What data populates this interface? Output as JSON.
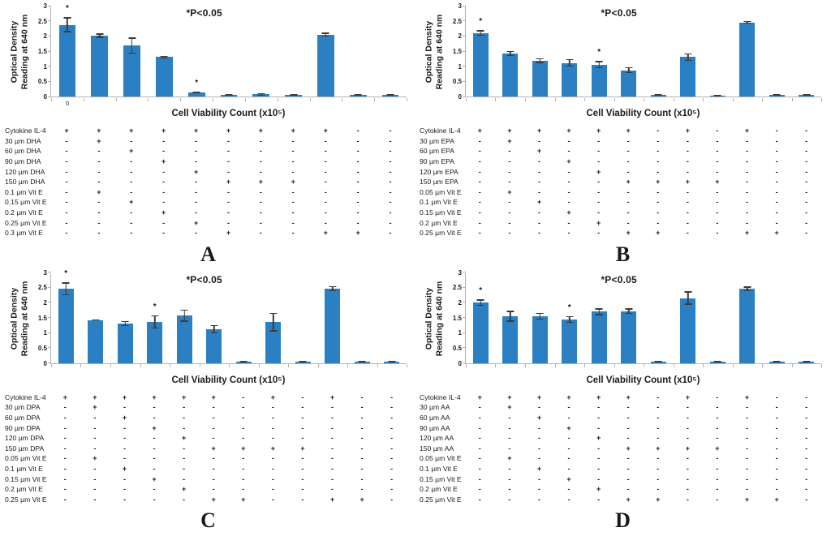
{
  "colors": {
    "bar_blue": "#2a80c2",
    "error_bar": "#3b3b3b",
    "axis_gray": "#b3b3b3"
  },
  "chart_data": [
    {
      "panel": "A",
      "type": "bar",
      "title": "",
      "ylabel": "Optical Density Reading at 640 nm",
      "ylabel_lines": [
        "Optical Density",
        "Reading at 640 nm"
      ],
      "xlabel": "Cell Viability Count (x10⁵)",
      "annotation": "*P<0.05",
      "ylim": [
        0,
        3
      ],
      "yticks": [
        "0",
        "0.5",
        "1",
        "1.5",
        "2",
        "2.5",
        "3"
      ],
      "grid": "off",
      "legend": "none",
      "x_first_tick_label": "0",
      "values": [
        2.37,
        2.01,
        1.68,
        1.3,
        0.13,
        0.05,
        0.07,
        0.05,
        2.04,
        0.06,
        0.05
      ],
      "errors": [
        0.25,
        0.07,
        0.27,
        0.04,
        0.03,
        0.01,
        0.04,
        0.02,
        0.07,
        0.02,
        0.01
      ],
      "significant_bars": [
        0,
        4
      ],
      "treatment_matrix": {
        "plus": "+",
        "minus": "-",
        "rows": [
          {
            "label": "Cytokine IL-4",
            "cells": [
              "+",
              "+",
              "+",
              "+",
              "+",
              "+",
              "+",
              "+",
              "+",
              "-",
              "-"
            ]
          },
          {
            "label": "30 µm DHA",
            "cells": [
              "-",
              "+",
              "-",
              "-",
              "-",
              "-",
              "-",
              "-",
              "-",
              "-",
              "-"
            ]
          },
          {
            "label": "60 µm DHA",
            "cells": [
              "-",
              "-",
              "+",
              "-",
              "-",
              "-",
              "-",
              "-",
              "-",
              "-",
              "-"
            ]
          },
          {
            "label": "90 µm DHA",
            "cells": [
              "-",
              "-",
              "-",
              "+",
              "-",
              "-",
              "-",
              "-",
              "-",
              "-",
              "-"
            ]
          },
          {
            "label": "120 µm DHA",
            "cells": [
              "-",
              "-",
              "-",
              "-",
              "+",
              "-",
              "-",
              "-",
              "-",
              "-",
              "-"
            ]
          },
          {
            "label": "150 µm DHA",
            "cells": [
              "-",
              "-",
              "-",
              "-",
              "-",
              "+",
              "+",
              "+",
              "-",
              "-",
              "-"
            ]
          },
          {
            "label": "0.1 µm Vit E",
            "cells": [
              "-",
              "+",
              "-",
              "-",
              "-",
              "-",
              "-",
              "-",
              "-",
              "-",
              "-"
            ]
          },
          {
            "label": "0.15 µm Vit E",
            "cells": [
              "-",
              "-",
              "+",
              "-",
              "-",
              "-",
              "-",
              "-",
              "-",
              "-",
              "-"
            ]
          },
          {
            "label": "0.2 µm Vit E",
            "cells": [
              "-",
              "-",
              "-",
              "+",
              "-",
              "-",
              "-",
              "-",
              "-",
              "-",
              "-"
            ]
          },
          {
            "label": "0.25 µm Vit E",
            "cells": [
              "-",
              "-",
              "-",
              "-",
              "+",
              "-",
              "-",
              "-",
              "-",
              "-",
              "-"
            ]
          },
          {
            "label": "0.3 µm Vit E",
            "cells": [
              "-",
              "-",
              "-",
              "-",
              "-",
              "+",
              "-",
              "-",
              "+",
              "+",
              "-"
            ]
          }
        ]
      }
    },
    {
      "panel": "B",
      "type": "bar",
      "title": "",
      "ylabel": "Optical Density Reading at 640 nm",
      "ylabel_lines": [
        "Optical Density",
        "Reading at 640 nm"
      ],
      "xlabel": "Cell Viability Count (x10⁵)",
      "annotation": "*P<0.05",
      "ylim": [
        0,
        3
      ],
      "yticks": [
        "0",
        "0.5",
        "1",
        "1.5",
        "2",
        "2.5",
        "3"
      ],
      "grid": "off",
      "legend": "none",
      "x_first_tick_label": "",
      "values": [
        2.1,
        1.42,
        1.19,
        1.11,
        1.05,
        0.87,
        0.05,
        1.3,
        0.04,
        2.45,
        0.05,
        0.05
      ],
      "errors": [
        0.09,
        0.09,
        0.08,
        0.12,
        0.12,
        0.1,
        0.02,
        0.13,
        0.01,
        0.05,
        0.01,
        0.01
      ],
      "significant_bars": [
        0,
        4
      ],
      "treatment_matrix": {
        "plus": "+",
        "minus": "-",
        "rows": [
          {
            "label": "Cytokine IL-4",
            "cells": [
              "+",
              "+",
              "+",
              "+",
              "+",
              "+",
              "-",
              "+",
              "-",
              "+",
              "-",
              "-"
            ]
          },
          {
            "label": "30 µm EPA",
            "cells": [
              "-",
              "+",
              "-",
              "-",
              "-",
              "-",
              "-",
              "-",
              "-",
              "-",
              "-",
              "-"
            ]
          },
          {
            "label": "60 µm EPA",
            "cells": [
              "-",
              "-",
              "+",
              "-",
              "-",
              "-",
              "-",
              "-",
              "-",
              "-",
              "-",
              "-"
            ]
          },
          {
            "label": "90 µm EPA",
            "cells": [
              "-",
              "-",
              "-",
              "+",
              "-",
              "-",
              "-",
              "-",
              "-",
              "-",
              "-",
              "-"
            ]
          },
          {
            "label": "120 µm EPA",
            "cells": [
              "-",
              "-",
              "-",
              "-",
              "+",
              "-",
              "-",
              "-",
              "-",
              "-",
              "-",
              "-"
            ]
          },
          {
            "label": "150 µm EPA",
            "cells": [
              "-",
              "-",
              "-",
              "-",
              "-",
              "+",
              "+",
              "+",
              "+",
              "-",
              "-",
              "-"
            ]
          },
          {
            "label": "0.05 µm Vit E",
            "cells": [
              "-",
              "+",
              "-",
              "-",
              "-",
              "-",
              "-",
              "-",
              "-",
              "-",
              "-",
              "-"
            ]
          },
          {
            "label": "0.1 µm Vit E",
            "cells": [
              "-",
              "-",
              "+",
              "-",
              "-",
              "-",
              "-",
              "-",
              "-",
              "-",
              "-",
              "-"
            ]
          },
          {
            "label": "0.15 µm Vit E",
            "cells": [
              "-",
              "-",
              "-",
              "+",
              "-",
              "-",
              "-",
              "-",
              "-",
              "-",
              "-",
              "-"
            ]
          },
          {
            "label": "0.2 µm Vit E",
            "cells": [
              "-",
              "-",
              "-",
              "-",
              "+",
              "-",
              "-",
              "-",
              "-",
              "-",
              "-",
              "-"
            ]
          },
          {
            "label": "0.25 µm Vit E",
            "cells": [
              "-",
              "-",
              "-",
              "-",
              "-",
              "+",
              "+",
              "-",
              "-",
              "+",
              "+",
              "-"
            ]
          }
        ]
      }
    },
    {
      "panel": "C",
      "type": "bar",
      "title": "",
      "ylabel": "Optical Density Reading at 640 nm",
      "ylabel_lines": [
        "Optical Density",
        "Reading at 640 nm"
      ],
      "xlabel": "Cell Viability Count (x10⁵)",
      "annotation": "*P<0.05",
      "ylim": [
        0,
        3
      ],
      "yticks": [
        "0",
        "0.5",
        "1",
        "1.5",
        "2",
        "2.5",
        "3"
      ],
      "grid": "off",
      "legend": "none",
      "x_first_tick_label": "",
      "values": [
        2.45,
        1.42,
        1.3,
        1.35,
        1.56,
        1.12,
        0.04,
        1.35,
        0.03,
        2.45,
        0.04,
        0.04
      ],
      "errors": [
        0.21,
        0.02,
        0.09,
        0.22,
        0.2,
        0.14,
        0.01,
        0.31,
        0.01,
        0.08,
        0.01,
        0.01
      ],
      "significant_bars": [
        0,
        3
      ],
      "treatment_matrix": {
        "plus": "+",
        "minus": "-",
        "rows": [
          {
            "label": "Cytokine IL-4",
            "cells": [
              "+",
              "+",
              "+",
              "+",
              "+",
              "+",
              "-",
              "+",
              "-",
              "+",
              "-",
              "-"
            ]
          },
          {
            "label": "30 µm DPA",
            "cells": [
              "-",
              "+",
              "-",
              "-",
              "-",
              "-",
              "-",
              "-",
              "-",
              "-",
              "-",
              "-"
            ]
          },
          {
            "label": "60 µm DPA",
            "cells": [
              "-",
              "-",
              "+",
              "-",
              "-",
              "-",
              "-",
              "-",
              "-",
              "-",
              "-",
              "-"
            ]
          },
          {
            "label": "90 µm DPA",
            "cells": [
              "-",
              "-",
              "-",
              "+",
              "-",
              "-",
              "-",
              "-",
              "-",
              "-",
              "-",
              "-"
            ]
          },
          {
            "label": "120 µm DPA",
            "cells": [
              "-",
              "-",
              "-",
              "-",
              "+",
              "-",
              "-",
              "-",
              "-",
              "-",
              "-",
              "-"
            ]
          },
          {
            "label": "150 µm DPA",
            "cells": [
              "-",
              "-",
              "-",
              "-",
              "-",
              "+",
              "+",
              "+",
              "+",
              "-",
              "-",
              "-"
            ]
          },
          {
            "label": "0.05 µm Vit E",
            "cells": [
              "-",
              "+",
              "-",
              "-",
              "-",
              "-",
              "-",
              "-",
              "-",
              "-",
              "-",
              "-"
            ]
          },
          {
            "label": "0.1 µm Vit E",
            "cells": [
              "-",
              "-",
              "+",
              "-",
              "-",
              "-",
              "-",
              "-",
              "-",
              "-",
              "-",
              "-"
            ]
          },
          {
            "label": "0.15 µm Vit E",
            "cells": [
              "-",
              "-",
              "-",
              "+",
              "-",
              "-",
              "-",
              "-",
              "-",
              "-",
              "-",
              "-"
            ]
          },
          {
            "label": "0.2 µm Vit E",
            "cells": [
              "-",
              "-",
              "-",
              "-",
              "+",
              "-",
              "-",
              "-",
              "-",
              "-",
              "-",
              "-"
            ]
          },
          {
            "label": "0.25 µm Vit E",
            "cells": [
              "-",
              "-",
              "-",
              "-",
              "-",
              "+",
              "+",
              "-",
              "-",
              "+",
              "+",
              "-"
            ]
          }
        ]
      }
    },
    {
      "panel": "D",
      "type": "bar",
      "title": "",
      "ylabel": "Optical Density Reading at 640 nm",
      "ylabel_lines": [
        "Optical Density",
        "Reading at 640 nm"
      ],
      "xlabel": "Cell Viability Count (x10⁵)",
      "annotation": "*P<0.05",
      "ylim": [
        0,
        3
      ],
      "yticks": [
        "0",
        "0.5",
        "1",
        "1.5",
        "2",
        "2.5",
        "3"
      ],
      "grid": "off",
      "legend": "none",
      "x_first_tick_label": "",
      "values": [
        1.99,
        1.54,
        1.54,
        1.43,
        1.69,
        1.71,
        0.04,
        2.14,
        0.04,
        2.44,
        0.05,
        0.05
      ],
      "errors": [
        0.11,
        0.18,
        0.11,
        0.11,
        0.11,
        0.09,
        0.01,
        0.22,
        0.01,
        0.08,
        0.01,
        0.01
      ],
      "significant_bars": [
        0,
        3
      ],
      "treatment_matrix": {
        "plus": "+",
        "minus": "-",
        "rows": [
          {
            "label": "Cytokine IL-4",
            "cells": [
              "+",
              "+",
              "+",
              "+",
              "+",
              "+",
              "-",
              "+",
              "-",
              "+",
              "-",
              "-"
            ]
          },
          {
            "label": "30 µm AA",
            "cells": [
              "-",
              "+",
              "-",
              "-",
              "-",
              "-",
              "-",
              "-",
              "-",
              "-",
              "-",
              "-"
            ]
          },
          {
            "label": "60 µm AA",
            "cells": [
              "-",
              "-",
              "+",
              "-",
              "-",
              "-",
              "-",
              "-",
              "-",
              "-",
              "-",
              "-"
            ]
          },
          {
            "label": "90 µm AA",
            "cells": [
              "-",
              "-",
              "-",
              "+",
              "-",
              "-",
              "-",
              "-",
              "-",
              "-",
              "-",
              "-"
            ]
          },
          {
            "label": "120 µm AA",
            "cells": [
              "-",
              "-",
              "-",
              "-",
              "+",
              "-",
              "-",
              "-",
              "-",
              "-",
              "-",
              "-"
            ]
          },
          {
            "label": "150 µm AA",
            "cells": [
              "-",
              "-",
              "-",
              "-",
              "-",
              "+",
              "+",
              "+",
              "+",
              "-",
              "-",
              "-"
            ]
          },
          {
            "label": "0.05 µm Vit E",
            "cells": [
              "-",
              "+",
              "-",
              "-",
              "-",
              "-",
              "-",
              "-",
              "-",
              "-",
              "-",
              "-"
            ]
          },
          {
            "label": "0.1 µm Vit E",
            "cells": [
              "-",
              "-",
              "+",
              "-",
              "-",
              "-",
              "-",
              "-",
              "-",
              "-",
              "-",
              "-"
            ]
          },
          {
            "label": "0.15 µm Vit E",
            "cells": [
              "-",
              "-",
              "-",
              "+",
              "-",
              "-",
              "-",
              "-",
              "-",
              "-",
              "-",
              "-"
            ]
          },
          {
            "label": "0.2 µm Vit E",
            "cells": [
              "-",
              "-",
              "-",
              "-",
              "+",
              "-",
              "-",
              "-",
              "-",
              "-",
              "-",
              "-"
            ]
          },
          {
            "label": "0.25 µm Vit E",
            "cells": [
              "-",
              "-",
              "-",
              "-",
              "-",
              "+",
              "+",
              "-",
              "-",
              "+",
              "+",
              "-"
            ]
          }
        ]
      }
    }
  ]
}
